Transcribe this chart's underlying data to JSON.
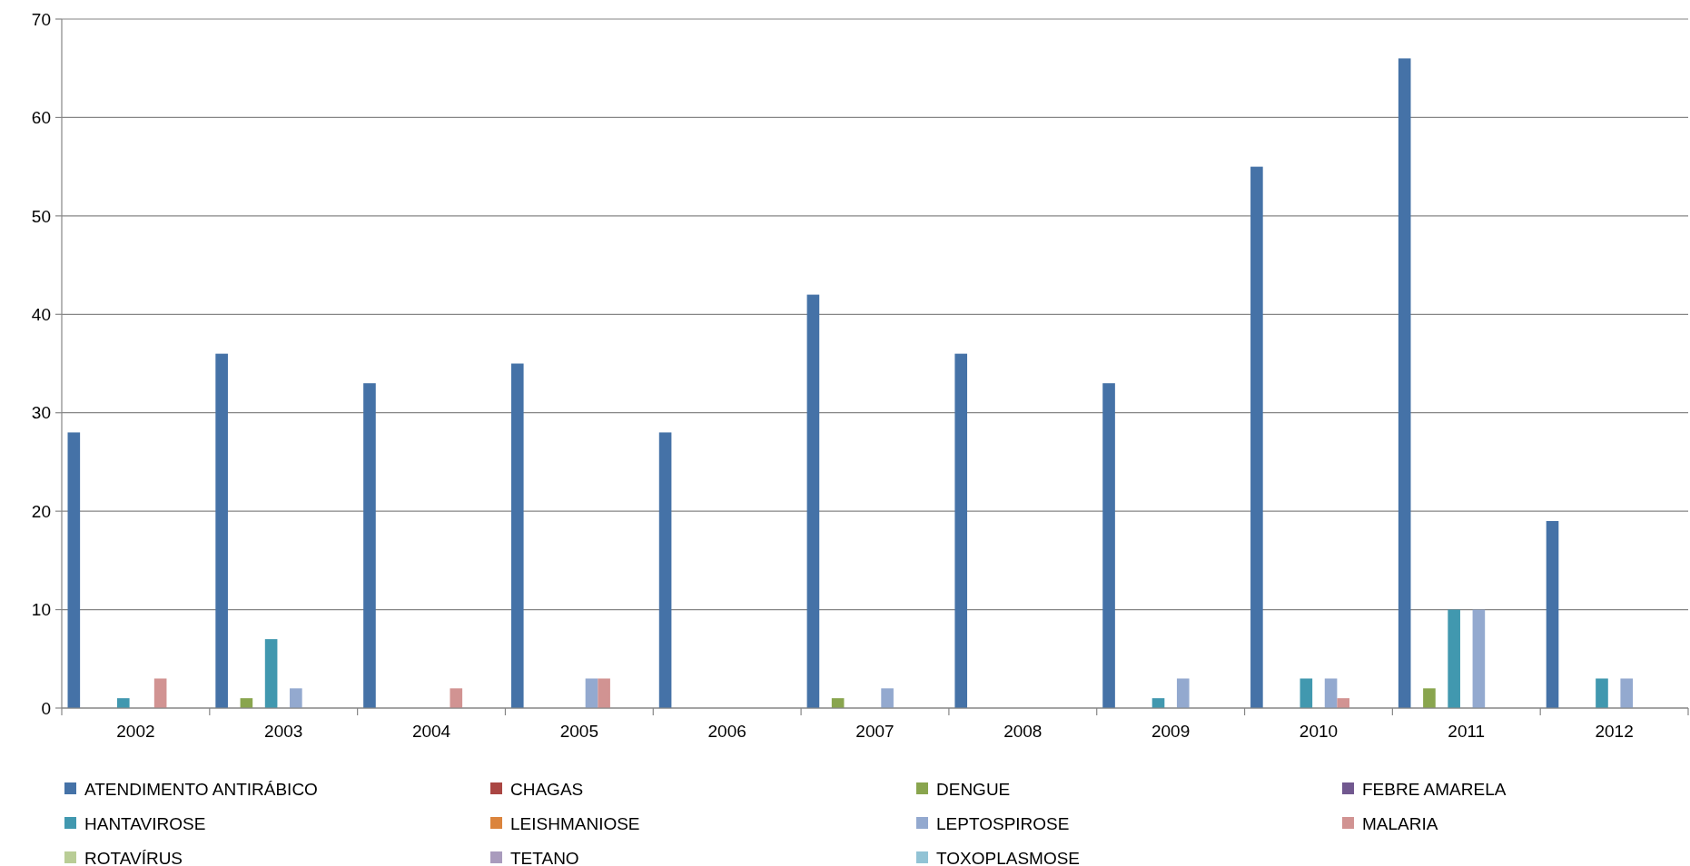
{
  "chart_data": {
    "type": "bar",
    "categories": [
      "2002",
      "2003",
      "2004",
      "2005",
      "2006",
      "2007",
      "2008",
      "2009",
      "2010",
      "2011",
      "2012"
    ],
    "series": [
      {
        "name": "ATENDIMENTO ANTIRÁBICO",
        "color": "#4572a7",
        "values": [
          28,
          36,
          33,
          35,
          28,
          42,
          36,
          33,
          55,
          66,
          19
        ]
      },
      {
        "name": "CHAGAS",
        "color": "#aa4643",
        "values": [
          0,
          0,
          0,
          0,
          0,
          0,
          0,
          0,
          0,
          0,
          0
        ]
      },
      {
        "name": "DENGUE",
        "color": "#89a54e",
        "values": [
          0,
          1,
          0,
          0,
          0,
          1,
          0,
          0,
          0,
          2,
          0
        ]
      },
      {
        "name": "FEBRE AMARELA",
        "color": "#71588f",
        "values": [
          0,
          0,
          0,
          0,
          0,
          0,
          0,
          0,
          0,
          0,
          0
        ]
      },
      {
        "name": "HANTAVIROSE",
        "color": "#4198af",
        "values": [
          1,
          7,
          0,
          0,
          0,
          0,
          0,
          1,
          3,
          10,
          3
        ]
      },
      {
        "name": "LEISHMANIOSE",
        "color": "#db843d",
        "values": [
          0,
          0,
          0,
          0,
          0,
          0,
          0,
          0,
          0,
          0,
          0
        ]
      },
      {
        "name": "LEPTOSPIROSE",
        "color": "#93a9cf",
        "values": [
          0,
          2,
          0,
          3,
          0,
          2,
          0,
          3,
          3,
          10,
          3
        ]
      },
      {
        "name": "MALARIA",
        "color": "#d19392",
        "values": [
          3,
          0,
          2,
          3,
          0,
          0,
          0,
          0,
          1,
          0,
          0
        ]
      },
      {
        "name": "ROTAVÍRUS",
        "color": "#b9cd96",
        "values": [
          0,
          0,
          0,
          0,
          0,
          0,
          0,
          0,
          0,
          0,
          0
        ]
      },
      {
        "name": "TETANO",
        "color": "#a99bbd",
        "values": [
          0,
          0,
          0,
          0,
          0,
          0,
          0,
          0,
          0,
          0,
          0
        ]
      },
      {
        "name": "TOXOPLASMOSE",
        "color": "#92c3d5",
        "values": [
          0,
          0,
          0,
          0,
          0,
          0,
          0,
          0,
          0,
          0,
          0
        ]
      }
    ],
    "ylim": [
      0,
      70
    ],
    "yticks": [
      0,
      10,
      20,
      30,
      40,
      50,
      60,
      70
    ],
    "grid": "y",
    "legend": "bottom"
  }
}
